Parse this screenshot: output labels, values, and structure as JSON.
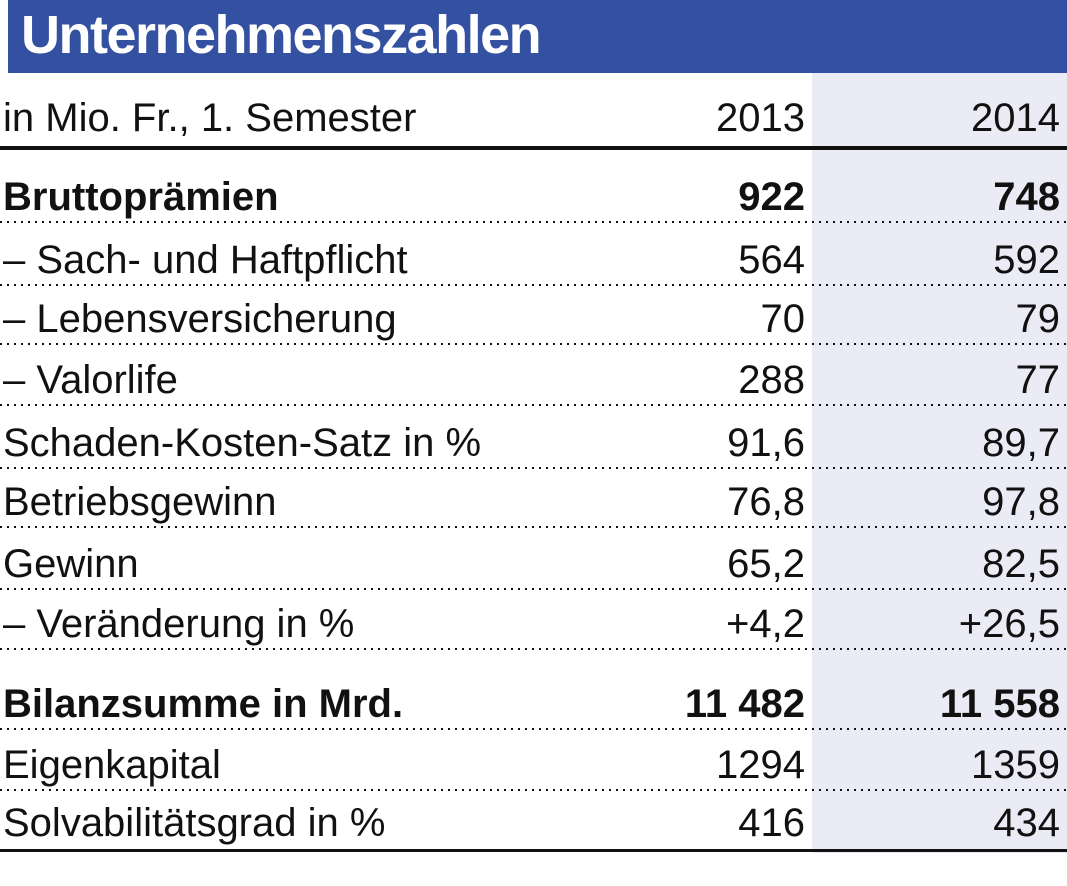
{
  "title": "Unternehmenszahlen",
  "colors": {
    "header_blue": "#3351a0",
    "column_2014_shade": "#ebebf5",
    "text": "#111111"
  },
  "chart_data": {
    "type": "table",
    "title": "Unternehmenszahlen",
    "unit_label": "in Mio. Fr., 1. Semester",
    "columns": [
      "2013",
      "2014"
    ],
    "highlighted_column": "2014",
    "rows": [
      {
        "label": "Bruttoprämien",
        "v2013": "922",
        "v2014": "748",
        "bold": true
      },
      {
        "label": "– Sach- und Haftpflicht",
        "v2013": "564",
        "v2014": "592",
        "bold": false
      },
      {
        "label": "– Lebensversicherung",
        "v2013": "70",
        "v2014": "79",
        "bold": false
      },
      {
        "label": "– Valorlife",
        "v2013": "288",
        "v2014": "77",
        "bold": false
      },
      {
        "label": "Schaden-Kosten-Satz in %",
        "v2013": "91,6",
        "v2014": "89,7",
        "bold": false
      },
      {
        "label": "Betriebsgewinn",
        "v2013": "76,8",
        "v2014": "97,8",
        "bold": false
      },
      {
        "label": "Gewinn",
        "v2013": "65,2",
        "v2014": "82,5",
        "bold": false
      },
      {
        "label": "– Veränderung in %",
        "v2013": "+4,2",
        "v2014": "+26,5",
        "bold": false
      },
      {
        "label": "Bilanzsumme in Mrd.",
        "v2013": "11 482",
        "v2014": "11 558",
        "bold": true
      },
      {
        "label": "Eigenkapital",
        "v2013": "1294",
        "v2014": "1359",
        "bold": false
      },
      {
        "label": "Solvabilitätsgrad in %",
        "v2013": "416",
        "v2014": "434",
        "bold": false
      }
    ]
  }
}
